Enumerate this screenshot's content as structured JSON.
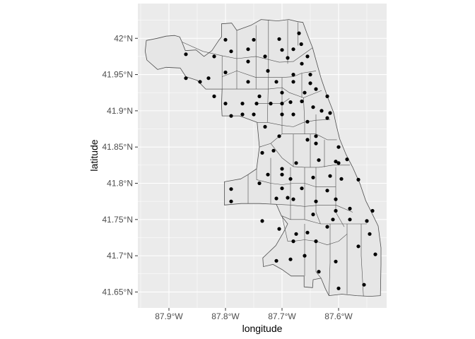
{
  "chart_data": {
    "type": "scatter",
    "title": "",
    "xlabel": "longitude",
    "ylabel": "latitude",
    "xlim": [
      -87.955,
      -87.515
    ],
    "ylim": [
      41.628,
      42.048
    ],
    "x_ticks": [
      {
        "value": -87.9,
        "label": "87.9°W"
      },
      {
        "value": -87.8,
        "label": "87.8°W"
      },
      {
        "value": -87.7,
        "label": "87.7°W"
      },
      {
        "value": -87.6,
        "label": "87.6°W"
      }
    ],
    "y_ticks": [
      {
        "value": 41.65,
        "label": "41.65°N"
      },
      {
        "value": 41.7,
        "label": "41.7°N"
      },
      {
        "value": 41.75,
        "label": "41.75°N"
      },
      {
        "value": 41.8,
        "label": "41.8°N"
      },
      {
        "value": 41.85,
        "label": "41.85°N"
      },
      {
        "value": 41.9,
        "label": "41.9°N"
      },
      {
        "value": 41.95,
        "label": "41.95°N"
      },
      {
        "value": 42.0,
        "label": "42°N"
      }
    ],
    "grid": true,
    "colors": {
      "panel_background": "#ebebeb",
      "grid": "#ffffff",
      "region_fill": "#e6e6e6",
      "region_border": "#4d4d4d",
      "point": "#000000"
    },
    "boundary": [
      [
        -87.94,
        41.997
      ],
      [
        -87.921,
        42.0
      ],
      [
        -87.905,
        42.003
      ],
      [
        -87.89,
        42.004
      ],
      [
        -87.881,
        42.002
      ],
      [
        -87.877,
        41.995
      ],
      [
        -87.871,
        41.983
      ],
      [
        -87.852,
        41.984
      ],
      [
        -87.838,
        41.975
      ],
      [
        -87.824,
        41.983
      ],
      [
        -87.812,
        41.997
      ],
      [
        -87.807,
        42.002
      ],
      [
        -87.807,
        42.02
      ],
      [
        -87.789,
        42.021
      ],
      [
        -87.78,
        42.011
      ],
      [
        -87.755,
        42.018
      ],
      [
        -87.737,
        42.026
      ],
      [
        -87.708,
        42.024
      ],
      [
        -87.688,
        42.026
      ],
      [
        -87.672,
        42.023
      ],
      [
        -87.663,
        42.022
      ],
      [
        -87.656,
        42.007
      ],
      [
        -87.646,
        41.987
      ],
      [
        -87.64,
        41.97
      ],
      [
        -87.631,
        41.945
      ],
      [
        -87.62,
        41.92
      ],
      [
        -87.609,
        41.898
      ],
      [
        -87.604,
        41.88
      ],
      [
        -87.598,
        41.861
      ],
      [
        -87.587,
        41.84
      ],
      [
        -87.575,
        41.822
      ],
      [
        -87.562,
        41.799
      ],
      [
        -87.552,
        41.776
      ],
      [
        -87.54,
        41.757
      ],
      [
        -87.53,
        41.741
      ],
      [
        -87.525,
        41.711
      ],
      [
        -87.525,
        41.688
      ],
      [
        -87.526,
        41.645
      ],
      [
        -87.545,
        41.644
      ],
      [
        -87.568,
        41.645
      ],
      [
        -87.594,
        41.647
      ],
      [
        -87.617,
        41.645
      ],
      [
        -87.623,
        41.654
      ],
      [
        -87.631,
        41.669
      ],
      [
        -87.645,
        41.667
      ],
      [
        -87.646,
        41.656
      ],
      [
        -87.661,
        41.657
      ],
      [
        -87.661,
        41.672
      ],
      [
        -87.684,
        41.672
      ],
      [
        -87.7,
        41.681
      ],
      [
        -87.716,
        41.688
      ],
      [
        -87.733,
        41.685
      ],
      [
        -87.734,
        41.697
      ],
      [
        -87.711,
        41.714
      ],
      [
        -87.697,
        41.733
      ],
      [
        -87.69,
        41.744
      ],
      [
        -87.701,
        41.755
      ],
      [
        -87.71,
        41.771
      ],
      [
        -87.74,
        41.772
      ],
      [
        -87.772,
        41.772
      ],
      [
        -87.802,
        41.77
      ],
      [
        -87.802,
        41.802
      ],
      [
        -87.773,
        41.806
      ],
      [
        -87.76,
        41.812
      ],
      [
        -87.745,
        41.82
      ],
      [
        -87.74,
        41.85
      ],
      [
        -87.744,
        41.884
      ],
      [
        -87.775,
        41.893
      ],
      [
        -87.806,
        41.893
      ],
      [
        -87.807,
        41.908
      ],
      [
        -87.806,
        41.93
      ],
      [
        -87.835,
        41.93
      ],
      [
        -87.85,
        41.942
      ],
      [
        -87.87,
        41.947
      ],
      [
        -87.88,
        41.959
      ],
      [
        -87.905,
        41.96
      ],
      [
        -87.92,
        41.957
      ],
      [
        -87.939,
        41.97
      ],
      [
        -87.942,
        41.982
      ]
    ],
    "inner_lines": [
      [
        [
          -87.877,
          41.995
        ],
        [
          -87.84,
          41.982
        ],
        [
          -87.806,
          41.976
        ],
        [
          -87.78,
          41.972
        ],
        [
          -87.746,
          41.975
        ],
        [
          -87.705,
          41.967
        ],
        [
          -87.68,
          41.968
        ],
        [
          -87.646,
          41.987
        ]
      ],
      [
        [
          -87.806,
          41.976
        ],
        [
          -87.806,
          41.93
        ]
      ],
      [
        [
          -87.78,
          42.011
        ],
        [
          -87.78,
          41.93
        ]
      ],
      [
        [
          -87.746,
          42.018
        ],
        [
          -87.746,
          41.93
        ]
      ],
      [
        [
          -87.724,
          42.025
        ],
        [
          -87.724,
          41.946
        ],
        [
          -87.726,
          41.884
        ]
      ],
      [
        [
          -87.69,
          42.025
        ],
        [
          -87.69,
          41.965
        ]
      ],
      [
        [
          -87.672,
          42.022
        ],
        [
          -87.672,
          41.99
        ]
      ],
      [
        [
          -87.806,
          41.947
        ],
        [
          -87.78,
          41.955
        ],
        [
          -87.746,
          41.946
        ],
        [
          -87.724,
          41.946
        ],
        [
          -87.7,
          41.946
        ],
        [
          -87.68,
          41.947
        ],
        [
          -87.665,
          41.952
        ],
        [
          -87.64,
          41.955
        ]
      ],
      [
        [
          -87.806,
          41.93
        ],
        [
          -87.78,
          41.93
        ],
        [
          -87.746,
          41.93
        ],
        [
          -87.724,
          41.93
        ],
        [
          -87.7,
          41.932
        ],
        [
          -87.687,
          41.925
        ],
        [
          -87.662,
          41.918
        ],
        [
          -87.63,
          41.928
        ]
      ],
      [
        [
          -87.744,
          41.91
        ],
        [
          -87.724,
          41.91
        ],
        [
          -87.7,
          41.91
        ],
        [
          -87.687,
          41.917
        ]
      ],
      [
        [
          -87.7,
          41.946
        ],
        [
          -87.7,
          41.868
        ]
      ],
      [
        [
          -87.665,
          41.952
        ],
        [
          -87.665,
          41.918
        ]
      ],
      [
        [
          -87.744,
          41.884
        ],
        [
          -87.726,
          41.884
        ],
        [
          -87.7,
          41.88
        ],
        [
          -87.68,
          41.878
        ],
        [
          -87.662,
          41.884
        ],
        [
          -87.64,
          41.887
        ],
        [
          -87.615,
          41.888
        ]
      ],
      [
        [
          -87.662,
          41.918
        ],
        [
          -87.66,
          41.884
        ],
        [
          -87.66,
          41.868
        ]
      ],
      [
        [
          -87.64,
          41.895
        ],
        [
          -87.64,
          41.887
        ],
        [
          -87.64,
          41.868
        ]
      ],
      [
        [
          -87.74,
          41.85
        ],
        [
          -87.72,
          41.855
        ],
        [
          -87.7,
          41.868
        ],
        [
          -87.68,
          41.868
        ],
        [
          -87.66,
          41.868
        ],
        [
          -87.64,
          41.868
        ],
        [
          -87.62,
          41.86
        ],
        [
          -87.603,
          41.86
        ]
      ],
      [
        [
          -87.72,
          41.855
        ],
        [
          -87.7,
          41.835
        ],
        [
          -87.68,
          41.823
        ],
        [
          -87.66,
          41.822
        ],
        [
          -87.635,
          41.822
        ],
        [
          -87.61,
          41.825
        ],
        [
          -87.58,
          41.825
        ]
      ],
      [
        [
          -87.68,
          41.868
        ],
        [
          -87.68,
          41.823
        ]
      ],
      [
        [
          -87.65,
          41.868
        ],
        [
          -87.65,
          41.822
        ]
      ],
      [
        [
          -87.625,
          41.86
        ],
        [
          -87.625,
          41.822
        ]
      ],
      [
        [
          -87.745,
          41.82
        ],
        [
          -87.745,
          41.805
        ],
        [
          -87.72,
          41.8
        ],
        [
          -87.7,
          41.798
        ],
        [
          -87.68,
          41.8
        ],
        [
          -87.66,
          41.8
        ],
        [
          -87.64,
          41.795
        ],
        [
          -87.605,
          41.795
        ]
      ],
      [
        [
          -87.76,
          41.812
        ],
        [
          -87.76,
          41.772
        ]
      ],
      [
        [
          -87.72,
          41.835
        ],
        [
          -87.72,
          41.772
        ]
      ],
      [
        [
          -87.685,
          41.822
        ],
        [
          -87.685,
          41.75
        ]
      ],
      [
        [
          -87.66,
          41.822
        ],
        [
          -87.66,
          41.75
        ]
      ],
      [
        [
          -87.64,
          41.822
        ],
        [
          -87.64,
          41.76
        ],
        [
          -87.632,
          41.744
        ]
      ],
      [
        [
          -87.605,
          41.822
        ],
        [
          -87.605,
          41.76
        ],
        [
          -87.59,
          41.74
        ]
      ],
      [
        [
          -87.71,
          41.771
        ],
        [
          -87.685,
          41.77
        ],
        [
          -87.66,
          41.768
        ],
        [
          -87.632,
          41.77
        ],
        [
          -87.605,
          41.77
        ],
        [
          -87.575,
          41.76
        ]
      ],
      [
        [
          -87.7,
          41.755
        ],
        [
          -87.685,
          41.75
        ],
        [
          -87.66,
          41.75
        ],
        [
          -87.632,
          41.744
        ],
        [
          -87.605,
          41.744
        ],
        [
          -87.58,
          41.744
        ],
        [
          -87.55,
          41.744
        ]
      ],
      [
        [
          -87.7,
          41.755
        ],
        [
          -87.69,
          41.72
        ],
        [
          -87.68,
          41.72
        ],
        [
          -87.66,
          41.722
        ],
        [
          -87.64,
          41.72
        ],
        [
          -87.62,
          41.715
        ],
        [
          -87.6,
          41.72
        ],
        [
          -87.585,
          41.73
        ]
      ],
      [
        [
          -87.66,
          41.744
        ],
        [
          -87.66,
          41.672
        ]
      ],
      [
        [
          -87.64,
          41.72
        ],
        [
          -87.64,
          41.678
        ],
        [
          -87.631,
          41.669
        ]
      ],
      [
        [
          -87.615,
          41.744
        ],
        [
          -87.615,
          41.69
        ],
        [
          -87.617,
          41.645
        ]
      ],
      [
        [
          -87.585,
          41.744
        ],
        [
          -87.585,
          41.7
        ],
        [
          -87.585,
          41.647
        ]
      ],
      [
        [
          -87.56,
          41.744
        ],
        [
          -87.56,
          41.7
        ],
        [
          -87.556,
          41.644
        ]
      ]
    ],
    "points": [
      [
        -87.8,
        41.998
      ],
      [
        -87.75,
        41.998
      ],
      [
        -87.705,
        41.999
      ],
      [
        -87.67,
        42.007
      ],
      [
        -87.666,
        41.992
      ],
      [
        -87.68,
        41.985
      ],
      [
        -87.7,
        41.984
      ],
      [
        -87.76,
        41.985
      ],
      [
        -87.79,
        41.982
      ],
      [
        -87.82,
        41.975
      ],
      [
        -87.87,
        41.978
      ],
      [
        -87.655,
        41.975
      ],
      [
        -87.73,
        41.975
      ],
      [
        -87.69,
        41.973
      ],
      [
        -87.76,
        41.968
      ],
      [
        -87.665,
        41.965
      ],
      [
        -87.725,
        41.955
      ],
      [
        -87.68,
        41.95
      ],
      [
        -87.65,
        41.95
      ],
      [
        -87.8,
        41.953
      ],
      [
        -87.83,
        41.945
      ],
      [
        -87.87,
        41.945
      ],
      [
        -87.845,
        41.94
      ],
      [
        -87.76,
        41.94
      ],
      [
        -87.71,
        41.94
      ],
      [
        -87.68,
        41.94
      ],
      [
        -87.65,
        41.938
      ],
      [
        -87.64,
        41.93
      ],
      [
        -87.66,
        41.925
      ],
      [
        -87.7,
        41.925
      ],
      [
        -87.74,
        41.92
      ],
      [
        -87.82,
        41.92
      ],
      [
        -87.62,
        41.92
      ],
      [
        -87.665,
        41.913
      ],
      [
        -87.685,
        41.912
      ],
      [
        -87.7,
        41.91
      ],
      [
        -87.72,
        41.91
      ],
      [
        -87.745,
        41.91
      ],
      [
        -87.77,
        41.91
      ],
      [
        -87.8,
        41.91
      ],
      [
        -87.645,
        41.905
      ],
      [
        -87.63,
        41.9
      ],
      [
        -87.615,
        41.897
      ],
      [
        -87.75,
        41.895
      ],
      [
        -87.77,
        41.895
      ],
      [
        -87.79,
        41.893
      ],
      [
        -87.68,
        41.895
      ],
      [
        -87.7,
        41.895
      ],
      [
        -87.62,
        41.89
      ],
      [
        -87.655,
        41.885
      ],
      [
        -87.73,
        41.878
      ],
      [
        -87.705,
        41.865
      ],
      [
        -87.64,
        41.865
      ],
      [
        -87.655,
        41.86
      ],
      [
        -87.64,
        41.855
      ],
      [
        -87.6,
        41.85
      ],
      [
        -87.715,
        41.845
      ],
      [
        -87.735,
        41.842
      ],
      [
        -87.635,
        41.832
      ],
      [
        -87.605,
        41.83
      ],
      [
        -87.585,
        41.833
      ],
      [
        -87.6,
        41.828
      ],
      [
        -87.675,
        41.828
      ],
      [
        -87.7,
        41.82
      ],
      [
        -87.7,
        41.812
      ],
      [
        -87.725,
        41.812
      ],
      [
        -87.615,
        41.81
      ],
      [
        -87.645,
        41.808
      ],
      [
        -87.685,
        41.806
      ],
      [
        -87.565,
        41.805
      ],
      [
        -87.595,
        41.806
      ],
      [
        -87.74,
        41.8
      ],
      [
        -87.7,
        41.793
      ],
      [
        -87.665,
        41.793
      ],
      [
        -87.62,
        41.79
      ],
      [
        -87.79,
        41.792
      ],
      [
        -87.69,
        41.78
      ],
      [
        -87.71,
        41.779
      ],
      [
        -87.68,
        41.778
      ],
      [
        -87.605,
        41.778
      ],
      [
        -87.64,
        41.775
      ],
      [
        -87.79,
        41.775
      ],
      [
        -87.58,
        41.765
      ],
      [
        -87.605,
        41.762
      ],
      [
        -87.54,
        41.762
      ],
      [
        -87.645,
        41.757
      ],
      [
        -87.61,
        41.75
      ],
      [
        -87.58,
        41.75
      ],
      [
        -87.55,
        41.748
      ],
      [
        -87.735,
        41.748
      ],
      [
        -87.62,
        41.74
      ],
      [
        -87.705,
        41.737
      ],
      [
        -87.545,
        41.73
      ],
      [
        -87.655,
        41.732
      ],
      [
        -87.675,
        41.73
      ],
      [
        -87.64,
        41.72
      ],
      [
        -87.68,
        41.72
      ],
      [
        -87.565,
        41.713
      ],
      [
        -87.535,
        41.702
      ],
      [
        -87.66,
        41.7
      ],
      [
        -87.685,
        41.695
      ],
      [
        -87.71,
        41.693
      ],
      [
        -87.605,
        41.692
      ],
      [
        -87.635,
        41.678
      ],
      [
        -87.6,
        41.655
      ],
      [
        -87.555,
        41.66
      ]
    ]
  }
}
